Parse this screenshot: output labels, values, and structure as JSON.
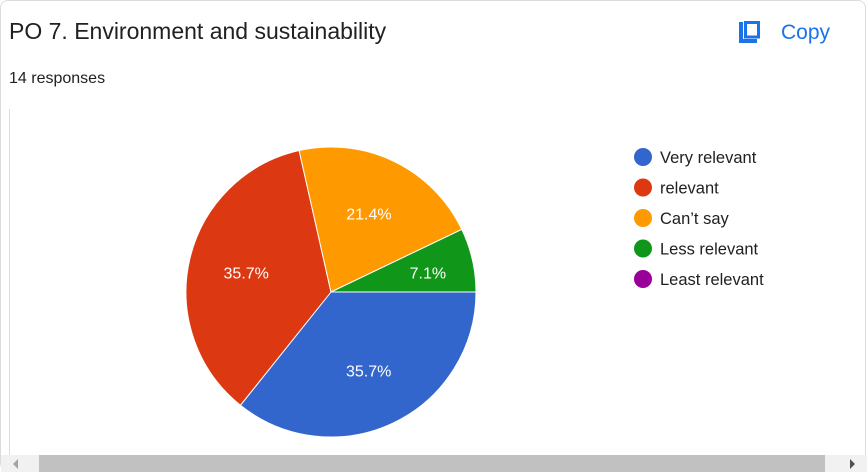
{
  "header": {
    "title": "PO 7. Environment and sustainability",
    "responses": "14 responses",
    "copy_label": "Copy"
  },
  "icons": {
    "copy": "copy-icon",
    "scroll_left": "arrow-left-icon",
    "scroll_right": "arrow-right-icon"
  },
  "colors": {
    "accent": "#1a73e8"
  },
  "chart_data": {
    "type": "pie",
    "title": "",
    "series": [
      {
        "name": "Very relevant",
        "value": 35.7,
        "label": "35.7%",
        "color": "#3366cc"
      },
      {
        "name": "relevant",
        "value": 35.7,
        "label": "35.7%",
        "color": "#dc3912"
      },
      {
        "name": "Can’t say",
        "value": 21.4,
        "label": "21.4%",
        "color": "#ff9900"
      },
      {
        "name": "Less relevant",
        "value": 7.1,
        "label": "7.1%",
        "color": "#109618"
      },
      {
        "name": "Least relevant",
        "value": 0,
        "label": "",
        "color": "#990099"
      }
    ],
    "legend_position": "right"
  }
}
